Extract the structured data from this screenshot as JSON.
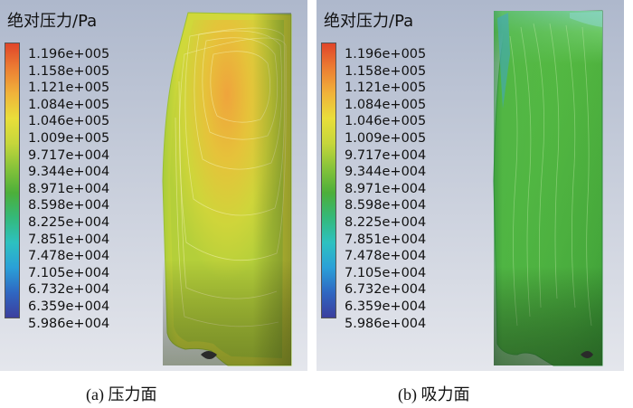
{
  "chart_data": [
    {
      "type": "heatmap",
      "title": "绝对压力/Pa",
      "caption": "(a) 压力面",
      "colorbar_ticks": [
        "1.196e+005",
        "1.158e+005",
        "1.121e+005",
        "1.084e+005",
        "1.046e+005",
        "1.009e+005",
        "9.717e+004",
        "9.344e+004",
        "8.971e+004",
        "8.598e+004",
        "8.225e+004",
        "7.851e+004",
        "7.478e+004",
        "7.105e+004",
        "6.732e+004",
        "6.359e+004",
        "5.986e+004"
      ],
      "range": [
        59860,
        119600
      ]
    },
    {
      "type": "heatmap",
      "title": "绝对压力/Pa",
      "caption": "(b) 吸力面",
      "colorbar_ticks": [
        "1.196e+005",
        "1.158e+005",
        "1.121e+005",
        "1.084e+005",
        "1.046e+005",
        "1.009e+005",
        "9.717e+004",
        "9.344e+004",
        "8.971e+004",
        "8.598e+004",
        "8.225e+004",
        "7.851e+004",
        "7.478e+004",
        "7.105e+004",
        "6.732e+004",
        "6.359e+004",
        "5.986e+004"
      ],
      "range": [
        59860,
        119600
      ]
    }
  ],
  "colors": {
    "scale": [
      "#3b3f9e",
      "#2f67c2",
      "#2aa0d8",
      "#2dc1c0",
      "#34b97a",
      "#4caf3a",
      "#86c33a",
      "#c6d63b",
      "#e9de3a",
      "#f0b23a",
      "#ec7e33",
      "#e0452a"
    ],
    "background": "#b6bfd0"
  }
}
